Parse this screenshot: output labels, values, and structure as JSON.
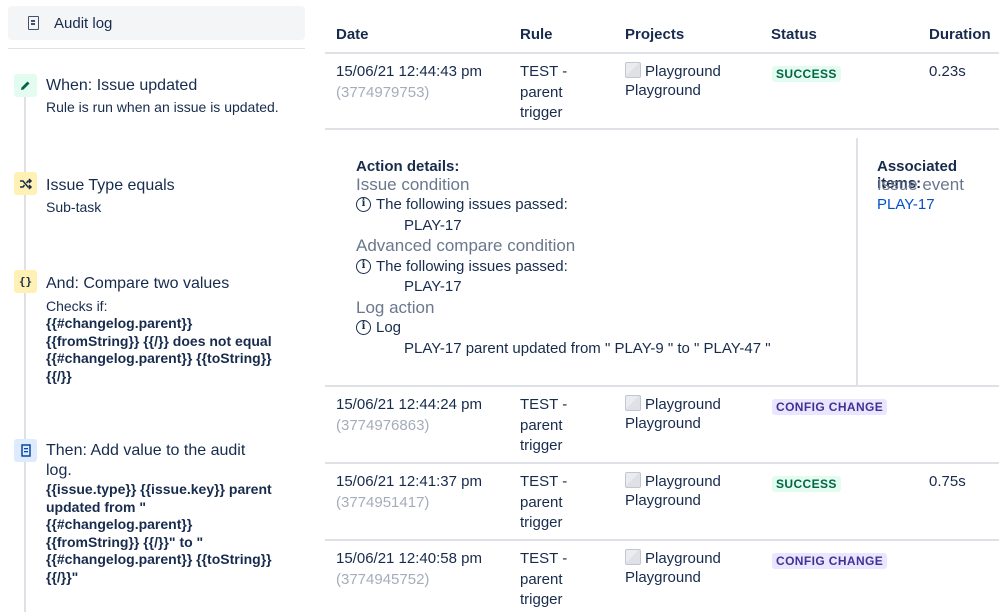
{
  "sidebar": {
    "audit_button": {
      "label": "Audit log",
      "icon": "document-icon"
    },
    "components": [
      {
        "icon": "pencil-icon",
        "title": "When: Issue updated",
        "subtitle": "Rule is run when an issue is updated."
      },
      {
        "icon": "shuffle-icon",
        "title": "Issue Type equals",
        "subtitle": "Sub-task"
      },
      {
        "icon": "braces-icon",
        "title": "And: Compare two values",
        "subtitle": "Checks if:",
        "code": "{{#changelog.parent}}\n{{fromString}} {{/}} does not equal\n{{#changelog.parent}} {{toString}}\n{{/}}"
      },
      {
        "icon": "document-icon",
        "title_line1": "Then: Add value to the audit",
        "title_line2": "log.",
        "code": "{{issue.type}} {{issue.key}} parent\nupdated from \"\n{{#changelog.parent}}\n{{fromString}} {{/}}\" to \"\n{{#changelog.parent}} {{toString}}\n{{/}}\""
      }
    ]
  },
  "table": {
    "headers": {
      "date": "Date",
      "rule": "Rule",
      "projects": "Projects",
      "status": "Status",
      "duration": "Duration"
    },
    "rows": [
      {
        "date": "15/06/21 12:44:43 pm",
        "id": "(3774979753)",
        "rule_lines": [
          "TEST -",
          "parent",
          "trigger"
        ],
        "project_lines": [
          "Playground",
          "Playground"
        ],
        "status": "SUCCESS",
        "duration": "0.23s"
      },
      {
        "date": "15/06/21 12:44:24 pm",
        "id": "(3774976863)",
        "rule_lines": [
          "TEST -",
          "parent",
          "trigger"
        ],
        "project_lines": [
          "Playground",
          "Playground"
        ],
        "status": "CONFIG CHANGE",
        "duration": ""
      },
      {
        "date": "15/06/21 12:41:37 pm",
        "id": "(3774951417)",
        "rule_lines": [
          "TEST -",
          "parent",
          "trigger"
        ],
        "project_lines": [
          "Playground",
          "Playground"
        ],
        "status": "SUCCESS",
        "duration": "0.75s"
      },
      {
        "date": "15/06/21 12:40:58 pm",
        "id": "(3774945752)",
        "rule_lines": [
          "TEST -",
          "parent",
          "trigger"
        ],
        "project_lines": [
          "Playground",
          "Playground"
        ],
        "status": "CONFIG CHANGE",
        "duration": ""
      }
    ],
    "details": {
      "action_heading": "Action details:",
      "sections": [
        {
          "title": "Issue condition",
          "line": "The following issues passed:",
          "value": "PLAY-17"
        },
        {
          "title": "Advanced compare condition",
          "line": "The following issues passed:",
          "value": "PLAY-17"
        },
        {
          "title": "Log action",
          "line": "Log",
          "value": "PLAY-17 parent updated from \" PLAY-9 \" to \" PLAY-47 \""
        }
      ],
      "associated_heading": "Associated items:",
      "associated_label": "Issue event",
      "associated_link": "PLAY-17"
    }
  },
  "colors": {
    "success_bg": "#e3fcef",
    "success_fg": "#006644",
    "config_bg": "#eae6ff",
    "config_fg": "#403294",
    "link": "#0052cc"
  }
}
